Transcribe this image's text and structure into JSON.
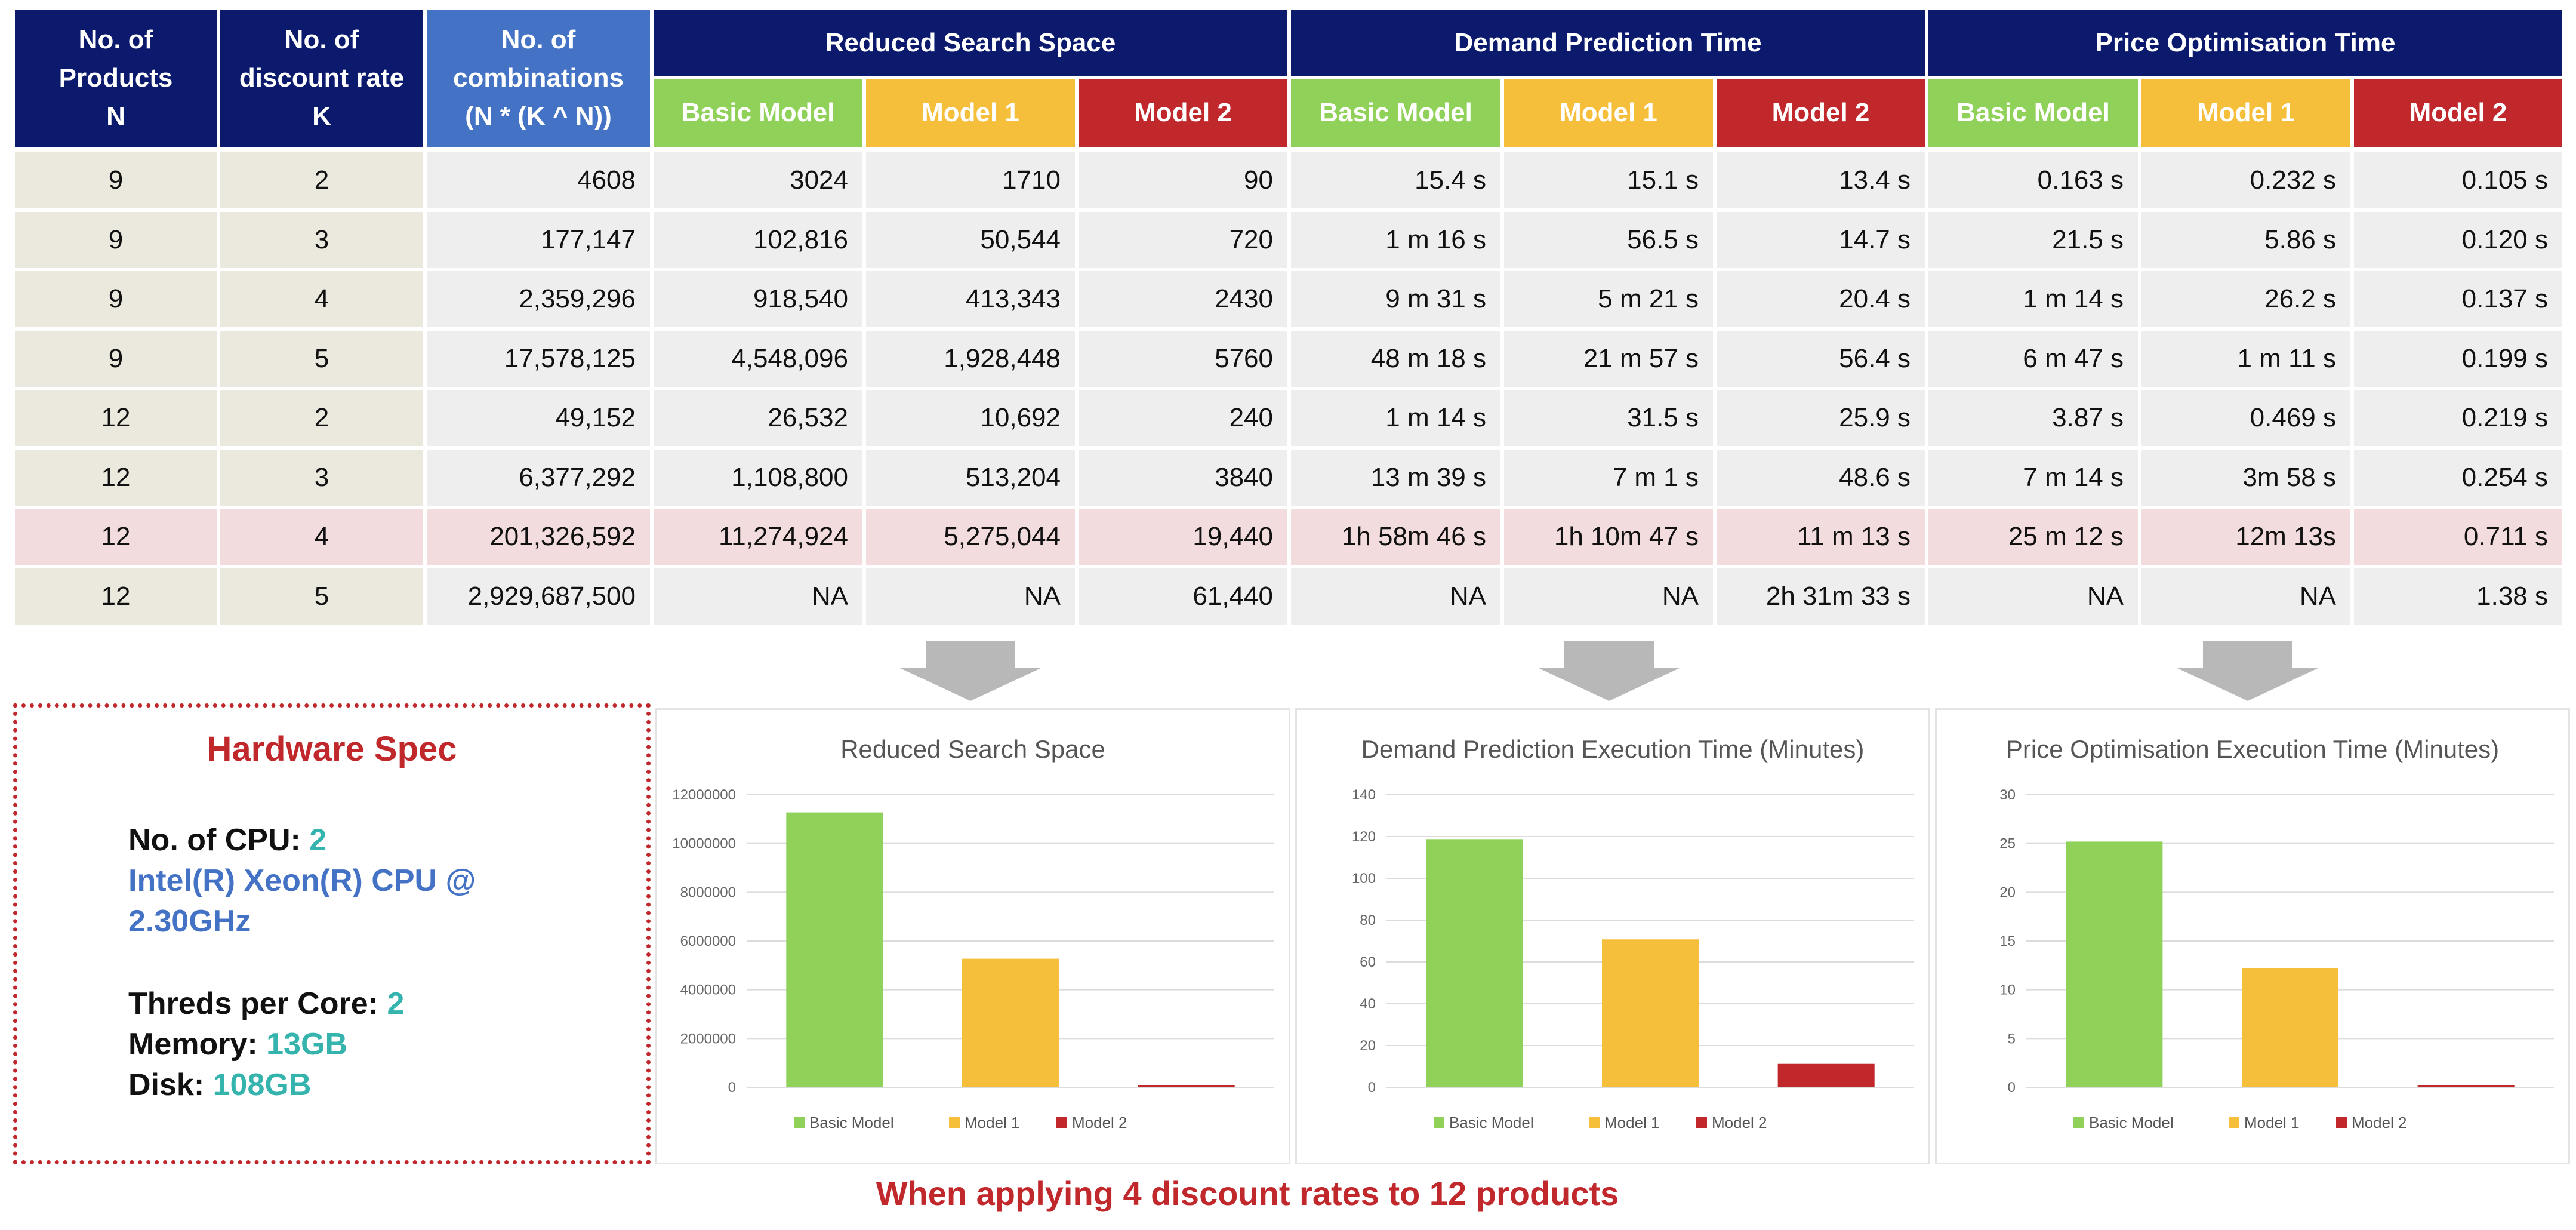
{
  "colors": {
    "header_navy": "#0c1a6e",
    "header_blue": "#4472c4",
    "basic": "#8fd159",
    "model1": "#f5bf3c",
    "model2": "#c0282c",
    "row_light": "#eeeeee",
    "row_beige": "#ebe8de",
    "row_highlight": "#f3dcdd"
  },
  "table": {
    "col_headers": [
      [
        "No. of",
        "Products",
        "N"
      ],
      [
        "No. of",
        "discount rate",
        "K"
      ],
      [
        "No. of",
        "combinations",
        "(N * (K ^ N))"
      ]
    ],
    "groups": [
      "Reduced Search Space",
      "Demand Prediction Time",
      "Price Optimisation Time"
    ],
    "sub_headers": [
      "Basic Model",
      "Model 1",
      "Model 2"
    ],
    "rows": [
      [
        "9",
        "2",
        "4608",
        "3024",
        "1710",
        "90",
        "15.4 s",
        "15.1 s",
        "13.4 s",
        "0.163 s",
        "0.232 s",
        "0.105 s"
      ],
      [
        "9",
        "3",
        "177,147",
        "102,816",
        "50,544",
        "720",
        "1 m 16 s",
        "56.5 s",
        "14.7 s",
        "21.5 s",
        "5.86 s",
        "0.120 s"
      ],
      [
        "9",
        "4",
        "2,359,296",
        "918,540",
        "413,343",
        "2430",
        "9 m 31 s",
        "5 m 21 s",
        "20.4 s",
        "1 m 14 s",
        "26.2 s",
        "0.137 s"
      ],
      [
        "9",
        "5",
        "17,578,125",
        "4,548,096",
        "1,928,448",
        "5760",
        "48 m 18 s",
        "21 m 57 s",
        "56.4 s",
        "6 m 47 s",
        "1 m 11 s",
        "0.199 s"
      ],
      [
        "12",
        "2",
        "49,152",
        "26,532",
        "10,692",
        "240",
        "1 m 14 s",
        "31.5 s",
        "25.9 s",
        "3.87 s",
        "0.469 s",
        "0.219 s"
      ],
      [
        "12",
        "3",
        "6,377,292",
        "1,108,800",
        "513,204",
        "3840",
        "13 m 39 s",
        "7 m 1 s",
        "48.6 s",
        "7 m 14 s",
        "3m 58 s",
        "0.254 s"
      ],
      [
        "12",
        "4",
        "201,326,592",
        "11,274,924",
        "5,275,044",
        "19,440",
        "1h 58m 46 s",
        "1h 10m 47 s",
        "11 m 13 s",
        "25 m 12 s",
        "12m 13s",
        "0.711 s"
      ],
      [
        "12",
        "5",
        "2,929,687,500",
        "NA",
        "NA",
        "61,440",
        "NA",
        "NA",
        "2h 31m 33 s",
        "NA",
        "NA",
        "1.38 s"
      ]
    ],
    "highlight_row": 6
  },
  "hardware": {
    "title": "Hardware Spec",
    "cpu_label": "No. of CPU:",
    "cpu_value": "2",
    "cpu_model_line1": "Intel(R) Xeon(R) CPU @",
    "cpu_model_line2": "2.30GHz",
    "threads_label": "Threds per Core:",
    "threads_value": "2",
    "memory_label": "Memory:",
    "memory_value": "13GB",
    "disk_label": "Disk:",
    "disk_value": "108GB"
  },
  "chart_data": [
    {
      "type": "bar",
      "title": "Reduced Search Space",
      "categories": [
        "Basic Model",
        "Model 1",
        "Model 2"
      ],
      "values": [
        11274924,
        5275044,
        19440
      ],
      "ylim": [
        0,
        12000000
      ],
      "yticks": [
        "0",
        "2000000",
        "4000000",
        "6000000",
        "8000000",
        "10000000",
        "12000000"
      ],
      "legend": "bottom"
    },
    {
      "type": "bar",
      "title": "Demand Prediction Execution Time (Minutes)",
      "categories": [
        "Basic Model",
        "Model 1",
        "Model 2"
      ],
      "values": [
        118.77,
        70.78,
        11.22
      ],
      "ylim": [
        0,
        140
      ],
      "yticks": [
        "0",
        "20",
        "40",
        "60",
        "80",
        "100",
        "120",
        "140"
      ],
      "legend": "bottom"
    },
    {
      "type": "bar",
      "title": "Price Optimisation Execution Time (Minutes)",
      "categories": [
        "Basic Model",
        "Model 1",
        "Model 2"
      ],
      "values": [
        25.2,
        12.22,
        0.012
      ],
      "ylim": [
        0,
        30
      ],
      "yticks": [
        "0",
        "5",
        "10",
        "15",
        "20",
        "25",
        "30"
      ],
      "legend": "bottom"
    }
  ],
  "footer": "When applying 4 discount rates to 12 products"
}
